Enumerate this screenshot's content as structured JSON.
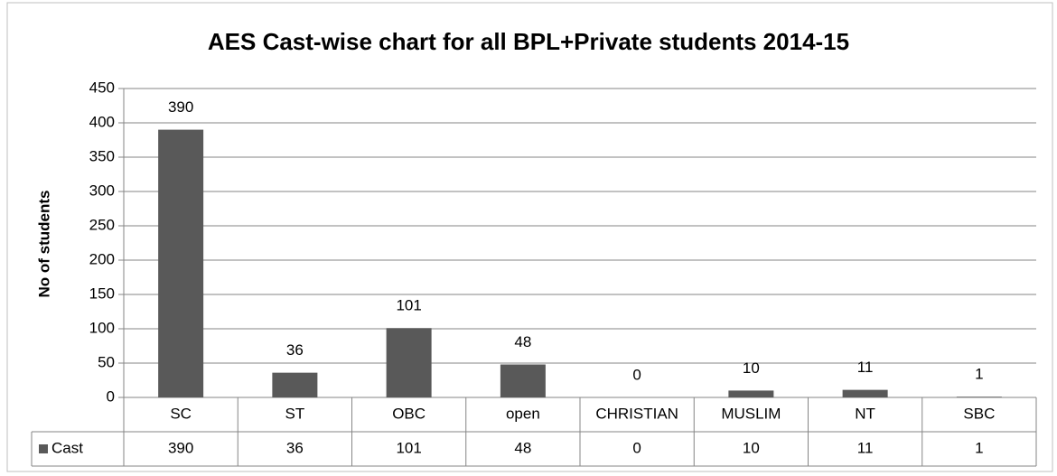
{
  "chart_data": {
    "type": "bar",
    "title": "AES Cast-wise chart for all BPL+Private students 2014-15",
    "y_label": "No of students",
    "categories": [
      "SC",
      "ST",
      "OBC",
      "open",
      "CHRISTIAN",
      "MUSLIM",
      "NT",
      "SBC"
    ],
    "series": [
      {
        "name": "Cast",
        "color": "#595959",
        "values": [
          390,
          36,
          101,
          48,
          0,
          10,
          11,
          1
        ]
      }
    ],
    "ylim": [
      0,
      450
    ],
    "yticks": [
      0,
      50,
      100,
      150,
      200,
      250,
      300,
      350,
      400,
      450
    ],
    "grid": true,
    "data_table": true
  }
}
